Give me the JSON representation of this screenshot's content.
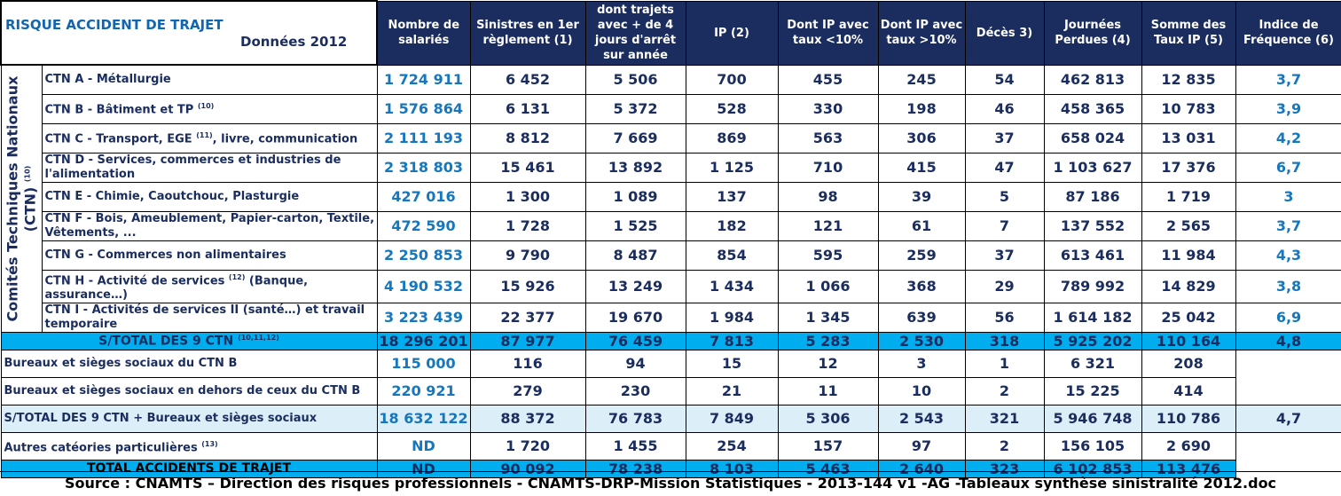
{
  "title": "RISQUE ACCIDENT DE TRAJET",
  "subtitle": "Données 2012",
  "vertical_label_line1": "Comités Techniques Nationaux",
  "vertical_label_line2": "(CTN)",
  "vertical_label_sup": "(10)",
  "headers": [
    "Nombre de salariés",
    "Sinistres en 1er règlement (1)",
    "dont trajets avec + de 4 jours d'arrêt sur année",
    "IP (2)",
    "Dont IP avec taux <10%",
    "Dont IP avec taux >10%",
    "Décès 3)",
    "Journées Perdues (4)",
    "Somme des Taux IP (5)",
    "Indice de Fréquence (6)"
  ],
  "ctn_rows": [
    {
      "label": "CTN A - Métallurgie",
      "sup": "",
      "label_after": "",
      "values": [
        "1 724 911",
        "6 452",
        "5 506",
        "700",
        "455",
        "245",
        "54",
        "462 813",
        "12 835",
        "3,7"
      ]
    },
    {
      "label": "CTN B - Bâtiment et TP",
      "sup": "(10)",
      "label_after": "",
      "values": [
        "1 576 864",
        "6 131",
        "5 372",
        "528",
        "330",
        "198",
        "46",
        "458 365",
        "10 783",
        "3,9"
      ]
    },
    {
      "label": "CTN C - Transport, EGE",
      "sup": "(11)",
      "label_after": ", livre, communication",
      "values": [
        "2 111 193",
        "8 812",
        "7 669",
        "869",
        "563",
        "306",
        "37",
        "658 024",
        "13 031",
        "4,2"
      ]
    },
    {
      "label": "CTN D - Services, commerces et industries de l'alimentation",
      "sup": "",
      "label_after": "",
      "values": [
        "2 318 803",
        "15 461",
        "13 892",
        "1 125",
        "710",
        "415",
        "47",
        "1 103 627",
        "17 376",
        "6,7"
      ]
    },
    {
      "label": "CTN E - Chimie, Caoutchouc, Plasturgie",
      "sup": "",
      "label_after": "",
      "values": [
        "427 016",
        "1 300",
        "1 089",
        "137",
        "98",
        "39",
        "5",
        "87 186",
        "1 719",
        "3"
      ]
    },
    {
      "label": "CTN F - Bois, Ameublement, Papier-carton, Textile, Vêtements, ...",
      "sup": "",
      "label_after": "",
      "values": [
        "472 590",
        "1 728",
        "1 525",
        "182",
        "121",
        "61",
        "7",
        "137 552",
        "2 565",
        "3,7"
      ]
    },
    {
      "label": "CTN G - Commerces non alimentaires",
      "sup": "",
      "label_after": "",
      "values": [
        "2 250 853",
        "9 790",
        "8 487",
        "854",
        "595",
        "259",
        "37",
        "613 461",
        "11 984",
        "4,3"
      ]
    },
    {
      "label": "CTN H - Activité de services",
      "sup": "(12)",
      "label_after": " (Banque, assurance…)",
      "values": [
        "4 190 532",
        "15 926",
        "13 249",
        "1 434",
        "1 066",
        "368",
        "29",
        "789 992",
        "14 829",
        "3,8"
      ]
    },
    {
      "label": "CTN I - Activités de services II (santé…) et travail temporaire",
      "sup": "",
      "label_after": "",
      "values": [
        "3 223 439",
        "22 377",
        "19 670",
        "1 984",
        "1 345",
        "639",
        "56",
        "1 614 182",
        "25 042",
        "6,9"
      ]
    }
  ],
  "subtotal_ctn": {
    "label": "S/TOTAL DES 9 CTN",
    "sup": "(10,11,12)",
    "values": [
      "18 296 201",
      "87 977",
      "76 459",
      "7 813",
      "5 283",
      "2 530",
      "318",
      "5 925 202",
      "110 164",
      "4,8"
    ]
  },
  "bureaux_b": {
    "label": "Bureaux et sièges sociaux du CTN B",
    "values": [
      "115 000",
      "116",
      "94",
      "15",
      "12",
      "3",
      "1",
      "6 321",
      "208"
    ]
  },
  "bureaux_other": {
    "label": "Bureaux et sièges sociaux en dehors de ceux du CTN B",
    "values": [
      "220 921",
      "279",
      "230",
      "21",
      "11",
      "10",
      "2",
      "15 225",
      "414"
    ]
  },
  "subtotal_bureaux": {
    "label": "S/TOTAL DES 9 CTN + Bureaux et sièges sociaux",
    "values": [
      "18 632 122",
      "88 372",
      "76 783",
      "7 849",
      "5 306",
      "2 543",
      "321",
      "5 946 748",
      "110 786",
      "4,7"
    ]
  },
  "autres": {
    "label": "Autres catéories particulières",
    "sup": "(13)",
    "values": [
      "ND",
      "1 720",
      "1 455",
      "254",
      "157",
      "97",
      "2",
      "156 105",
      "2 690"
    ]
  },
  "total": {
    "label": "TOTAL ACCIDENTS DE TRAJET",
    "values": [
      "ND",
      "90 092",
      "78 238",
      "8 103",
      "5 463",
      "2 640",
      "323",
      "6 102 853",
      "113 476"
    ]
  },
  "source": "Source : CNAMTS – Direction des risques professionnels - CNAMTS-DRP-Mission Statistiques - 2013-144 v1 -AG -Tableaux synthèse sinistralité 2012.doc",
  "colors": {
    "header_bg": "#1a2d5e",
    "accent_blue": "#1577bd",
    "subtotal_bg": "#00adef",
    "light_row_bg": "#dceef8"
  }
}
